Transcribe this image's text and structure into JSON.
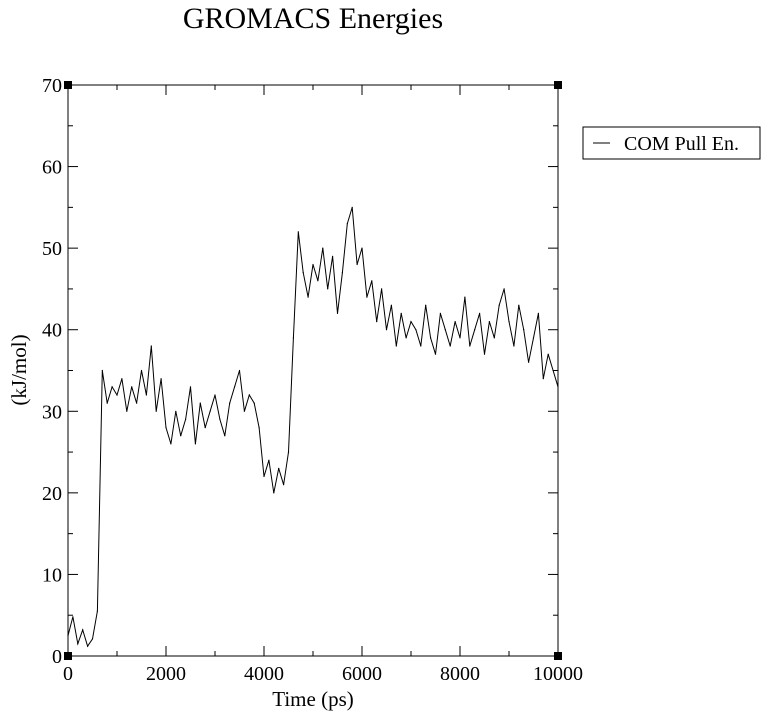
{
  "chart_data": {
    "type": "line",
    "title": "GROMACS Energies",
    "xlabel": "Time (ps)",
    "ylabel": "(kJ/mol)",
    "xlim": [
      0,
      10000
    ],
    "ylim": [
      0,
      70
    ],
    "x_ticks": [
      "0",
      "2000",
      "4000",
      "6000",
      "8000",
      "10000"
    ],
    "y_ticks": [
      "0",
      "10",
      "20",
      "30",
      "40",
      "50",
      "60",
      "70"
    ],
    "legend": {
      "position": "right",
      "entries": [
        "COM Pull En."
      ]
    },
    "grid": false,
    "series": [
      {
        "name": "COM Pull En.",
        "color": "#000000",
        "x": [
          0,
          100,
          200,
          300,
          400,
          500,
          600,
          700,
          800,
          900,
          1000,
          1100,
          1200,
          1300,
          1400,
          1500,
          1600,
          1700,
          1800,
          1900,
          2000,
          2100,
          2200,
          2300,
          2400,
          2500,
          2600,
          2700,
          2800,
          2900,
          3000,
          3100,
          3200,
          3300,
          3400,
          3500,
          3600,
          3700,
          3800,
          3900,
          4000,
          4100,
          4200,
          4300,
          4400,
          4500,
          4600,
          4700,
          4800,
          4900,
          5000,
          5100,
          5200,
          5300,
          5400,
          5500,
          5600,
          5700,
          5800,
          5900,
          6000,
          6100,
          6200,
          6300,
          6400,
          6500,
          6600,
          6700,
          6800,
          6900,
          7000,
          7100,
          7200,
          7300,
          7400,
          7500,
          7600,
          7700,
          7800,
          7900,
          8000,
          8100,
          8200,
          8300,
          8400,
          8500,
          8600,
          8700,
          8800,
          8900,
          9000,
          9100,
          9200,
          9300,
          9400,
          9500,
          9600,
          9700,
          9800,
          9900,
          10000
        ],
        "y": [
          2.5,
          4.8,
          1.5,
          3.2,
          1.2,
          2.1,
          5.5,
          35,
          31,
          33,
          32,
          34,
          30,
          33,
          31,
          35,
          32,
          38,
          30,
          34,
          28,
          26,
          30,
          27,
          29,
          33,
          26,
          31,
          28,
          30,
          32,
          29,
          27,
          31,
          33,
          35,
          30,
          32,
          31,
          28,
          22,
          24,
          20,
          23,
          21,
          25,
          39,
          52,
          47,
          44,
          48,
          46,
          50,
          45,
          49,
          42,
          47,
          53,
          55,
          48,
          50,
          44,
          46,
          41,
          45,
          40,
          43,
          38,
          42,
          39,
          41,
          40,
          38,
          43,
          39,
          37,
          42,
          40,
          38,
          41,
          39,
          44,
          38,
          40,
          42,
          37,
          41,
          39,
          43,
          45,
          41,
          38,
          43,
          40,
          36,
          39,
          42,
          34,
          37,
          35,
          33
        ]
      }
    ]
  }
}
